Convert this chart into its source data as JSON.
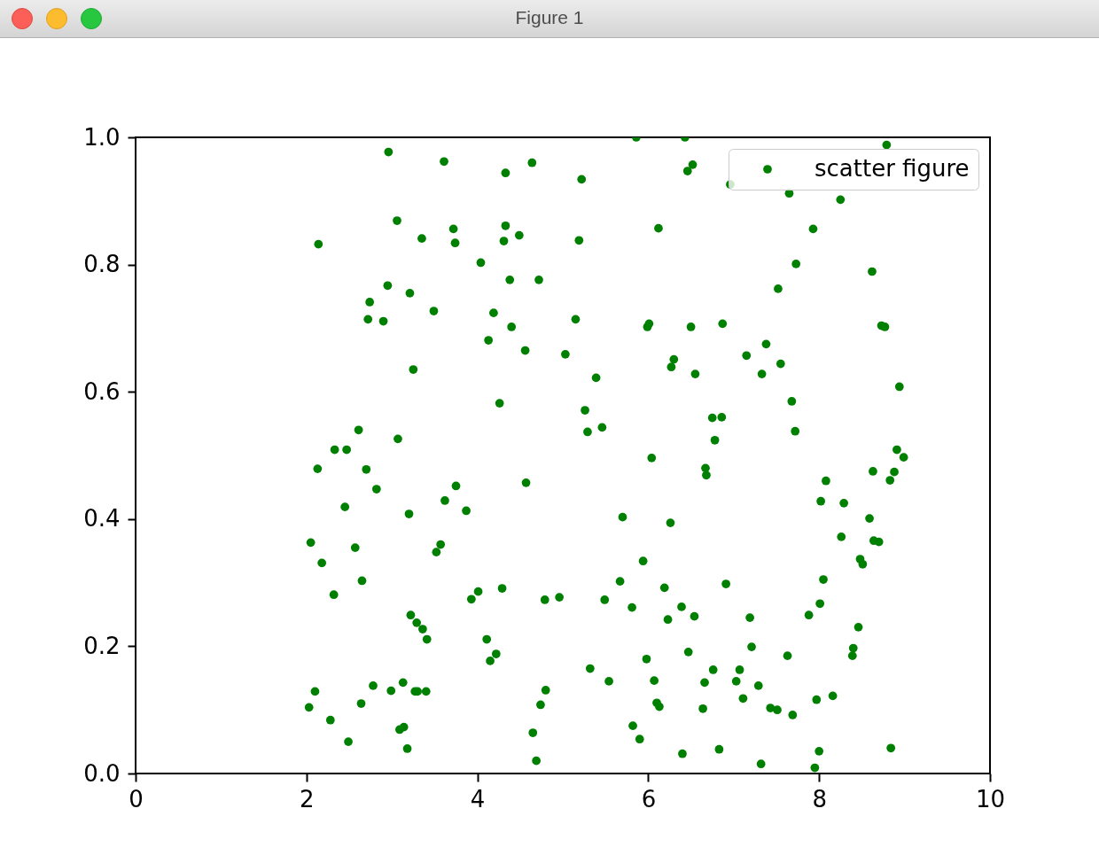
{
  "chart_data": {
    "type": "scatter",
    "title": "Figure 1",
    "x": [
      2.96,
      3.61,
      4.33,
      4.64,
      5.22,
      5.86,
      6.43,
      6.52,
      6.46,
      6.96,
      7.65,
      8.25,
      8.79,
      2.14,
      3.06,
      3.35,
      3.72,
      3.74,
      4.33,
      4.49,
      4.31,
      4.04,
      4.38,
      4.72,
      5.19,
      6.12,
      7.93,
      7.73,
      8.62,
      7.52,
      2.95,
      3.21,
      2.74,
      2.72,
      2.9,
      3.49,
      4.19,
      4.13,
      4.4,
      4.56,
      5.15,
      5.03,
      6.01,
      5.99,
      6.5,
      6.87,
      7.15,
      7.38,
      7.33,
      7.55,
      6.3,
      6.27,
      6.55,
      3.25,
      5.39,
      8.73,
      8.77,
      8.94,
      7.68,
      4.26,
      5.26,
      6.75,
      6.86,
      6.78,
      7.72,
      5.29,
      5.46,
      2.61,
      3.07,
      2.33,
      2.47,
      2.13,
      2.7,
      6.04,
      6.67,
      6.68,
      8.91,
      8.99,
      8.63,
      8.88,
      8.83,
      8.08,
      2.82,
      3.75,
      4.57,
      2.45,
      3.62,
      3.87,
      3.2,
      5.7,
      8.02,
      8.29,
      8.59,
      6.26,
      2.05,
      2.57,
      3.57,
      3.52,
      2.18,
      8.26,
      8.64,
      8.7,
      8.48,
      8.51,
      5.94,
      2.65,
      2.32,
      4.01,
      3.93,
      4.29,
      4.79,
      4.96,
      5.67,
      5.49,
      5.81,
      6.19,
      6.39,
      6.54,
      6.23,
      6.91,
      8.05,
      8.01,
      7.88,
      7.19,
      7.21,
      7.63,
      8.46,
      8.4,
      8.39,
      3.22,
      3.29,
      3.36,
      3.41,
      4.11,
      4.22,
      4.15,
      6.47,
      5.98,
      6.76,
      7.07,
      5.32,
      5.54,
      6.07,
      6.66,
      7.03,
      7.29,
      7.11,
      8.16,
      7.97,
      7.43,
      7.51,
      7.69,
      6.64,
      6.1,
      6.13,
      4.8,
      4.74,
      2.1,
      2.03,
      2.28,
      2.49,
      2.78,
      2.64,
      2.99,
      3.13,
      3.27,
      3.3,
      3.4,
      3.09,
      3.14,
      3.18,
      4.65,
      4.69,
      5.82,
      5.9,
      6.4,
      6.83,
      7.32,
      8.0,
      7.95,
      8.84
    ],
    "series": [
      {
        "name": "scatter figure",
        "color": "#008000",
        "values": [
          0.977,
          0.962,
          0.944,
          0.96,
          0.934,
          1,
          1,
          0.957,
          0.947,
          0.926,
          0.912,
          0.902,
          0.988,
          0.832,
          0.869,
          0.841,
          0.856,
          0.834,
          0.861,
          0.846,
          0.837,
          0.803,
          0.776,
          0.776,
          0.838,
          0.857,
          0.856,
          0.801,
          0.789,
          0.762,
          0.767,
          0.755,
          0.741,
          0.714,
          0.711,
          0.727,
          0.724,
          0.681,
          0.702,
          0.665,
          0.714,
          0.659,
          0.707,
          0.702,
          0.702,
          0.707,
          0.657,
          0.675,
          0.628,
          0.644,
          0.651,
          0.639,
          0.628,
          0.635,
          0.622,
          0.704,
          0.702,
          0.608,
          0.585,
          0.582,
          0.571,
          0.559,
          0.56,
          0.524,
          0.538,
          0.537,
          0.544,
          0.54,
          0.526,
          0.509,
          0.509,
          0.479,
          0.478,
          0.496,
          0.48,
          0.469,
          0.509,
          0.497,
          0.475,
          0.474,
          0.461,
          0.46,
          0.447,
          0.452,
          0.457,
          0.419,
          0.429,
          0.413,
          0.408,
          0.403,
          0.428,
          0.425,
          0.401,
          0.394,
          0.363,
          0.355,
          0.36,
          0.348,
          0.331,
          0.372,
          0.366,
          0.364,
          0.337,
          0.329,
          0.334,
          0.303,
          0.281,
          0.286,
          0.274,
          0.291,
          0.273,
          0.277,
          0.302,
          0.273,
          0.261,
          0.292,
          0.262,
          0.247,
          0.242,
          0.298,
          0.305,
          0.267,
          0.249,
          0.245,
          0.199,
          0.185,
          0.23,
          0.197,
          0.185,
          0.249,
          0.237,
          0.227,
          0.211,
          0.211,
          0.188,
          0.177,
          0.191,
          0.18,
          0.163,
          0.163,
          0.165,
          0.145,
          0.146,
          0.143,
          0.145,
          0.138,
          0.118,
          0.122,
          0.116,
          0.103,
          0.1,
          0.092,
          0.102,
          0.111,
          0.105,
          0.131,
          0.108,
          0.129,
          0.104,
          0.084,
          0.05,
          0.138,
          0.11,
          0.13,
          0.143,
          0.129,
          0.129,
          0.129,
          0.069,
          0.073,
          0.039,
          0.064,
          0.02,
          0.075,
          0.054,
          0.031,
          0.038,
          0.015,
          0.035,
          0.009,
          0.04
        ]
      }
    ],
    "xlim": [
      0,
      10
    ],
    "ylim": [
      0,
      1
    ],
    "xticks": [
      0,
      2,
      4,
      6,
      8,
      10
    ],
    "yticks": [
      {
        "value": 0,
        "label": "0.0"
      },
      0.2,
      0.4,
      0.6,
      0.8,
      {
        "value": 1,
        "label": "1.0"
      }
    ],
    "legend": "top right",
    "marker": "circle",
    "grid": false
  }
}
